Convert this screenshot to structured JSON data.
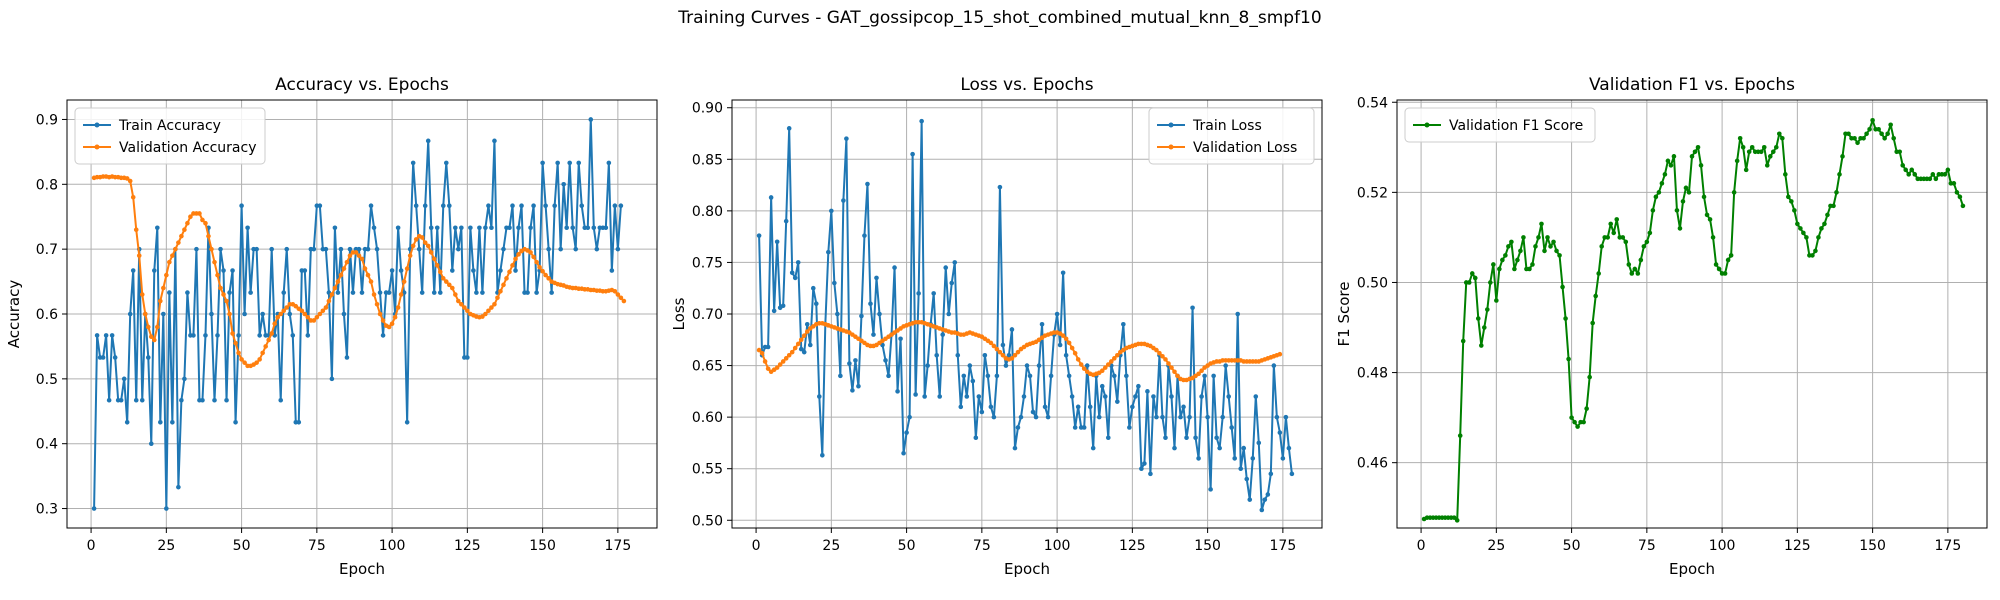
{
  "figure": {
    "suptitle": "Training Curves - GAT_gossipcop_15_shot_combined_mutual_knn_8_smpf10"
  },
  "chart_data": [
    {
      "type": "line",
      "title": "Accuracy vs. Epochs",
      "xlabel": "Epoch",
      "ylabel": "Accuracy",
      "xlim": [
        -8,
        188
      ],
      "ylim": [
        0.27,
        0.93
      ],
      "xticks": [
        0,
        25,
        50,
        75,
        100,
        125,
        150,
        175
      ],
      "yticks": [
        0.3,
        0.4,
        0.5,
        0.6,
        0.7,
        0.8,
        0.9
      ],
      "ytick_labels": [
        "0.3",
        "0.4",
        "0.5",
        "0.6",
        "0.7",
        "0.8",
        "0.9"
      ],
      "grid": true,
      "legend": "top-left",
      "series": [
        {
          "name": "Train Accuracy",
          "color": "#1f77b4",
          "x_start": 1,
          "values": [
            0.3,
            0.567,
            0.533,
            0.533,
            0.567,
            0.467,
            0.567,
            0.533,
            0.467,
            0.467,
            0.5,
            0.433,
            0.6,
            0.667,
            0.467,
            0.7,
            0.467,
            0.6,
            0.533,
            0.4,
            0.667,
            0.733,
            0.433,
            0.6,
            0.3,
            0.633,
            0.433,
            0.7,
            0.333,
            0.467,
            0.5,
            0.633,
            0.567,
            0.567,
            0.7,
            0.467,
            0.467,
            0.567,
            0.733,
            0.6,
            0.467,
            0.567,
            0.7,
            0.667,
            0.467,
            0.633,
            0.667,
            0.433,
            0.567,
            0.767,
            0.6,
            0.733,
            0.633,
            0.7,
            0.7,
            0.567,
            0.6,
            0.567,
            0.567,
            0.7,
            0.567,
            0.6,
            0.467,
            0.633,
            0.7,
            0.6,
            0.567,
            0.433,
            0.433,
            0.667,
            0.667,
            0.567,
            0.7,
            0.7,
            0.767,
            0.767,
            0.7,
            0.7,
            0.633,
            0.5,
            0.733,
            0.633,
            0.7,
            0.6,
            0.533,
            0.7,
            0.633,
            0.7,
            0.7,
            0.633,
            0.7,
            0.7,
            0.767,
            0.733,
            0.7,
            0.633,
            0.567,
            0.633,
            0.633,
            0.667,
            0.6,
            0.733,
            0.667,
            0.633,
            0.433,
            0.7,
            0.833,
            0.767,
            0.7,
            0.633,
            0.767,
            0.867,
            0.733,
            0.633,
            0.733,
            0.633,
            0.767,
            0.833,
            0.767,
            0.667,
            0.733,
            0.7,
            0.733,
            0.533,
            0.533,
            0.733,
            0.667,
            0.633,
            0.733,
            0.633,
            0.733,
            0.767,
            0.733,
            0.867,
            0.633,
            0.667,
            0.7,
            0.733,
            0.733,
            0.767,
            0.667,
            0.733,
            0.767,
            0.633,
            0.633,
            0.733,
            0.767,
            0.633,
            0.667,
            0.833,
            0.767,
            0.7,
            0.633,
            0.767,
            0.833,
            0.7,
            0.8,
            0.733,
            0.833,
            0.733,
            0.7,
            0.833,
            0.767,
            0.733,
            0.733,
            0.9,
            0.733,
            0.7,
            0.733,
            0.733,
            0.733,
            0.833,
            0.667,
            0.767,
            0.7,
            0.767
          ]
        },
        {
          "name": "Validation Accuracy",
          "color": "#ff7f0e",
          "x_start": 1,
          "values": [
            0.81,
            0.811,
            0.811,
            0.812,
            0.812,
            0.811,
            0.812,
            0.811,
            0.811,
            0.81,
            0.81,
            0.809,
            0.805,
            0.78,
            0.73,
            0.69,
            0.63,
            0.6,
            0.58,
            0.565,
            0.56,
            0.58,
            0.62,
            0.64,
            0.66,
            0.68,
            0.69,
            0.7,
            0.71,
            0.72,
            0.73,
            0.74,
            0.75,
            0.755,
            0.755,
            0.755,
            0.745,
            0.74,
            0.72,
            0.7,
            0.68,
            0.66,
            0.64,
            0.63,
            0.62,
            0.6,
            0.57,
            0.555,
            0.54,
            0.53,
            0.525,
            0.52,
            0.52,
            0.522,
            0.525,
            0.53,
            0.54,
            0.55,
            0.56,
            0.57,
            0.585,
            0.595,
            0.6,
            0.605,
            0.61,
            0.615,
            0.615,
            0.612,
            0.608,
            0.605,
            0.6,
            0.595,
            0.59,
            0.59,
            0.595,
            0.6,
            0.605,
            0.61,
            0.62,
            0.63,
            0.64,
            0.65,
            0.66,
            0.67,
            0.68,
            0.69,
            0.695,
            0.695,
            0.69,
            0.685,
            0.67,
            0.66,
            0.65,
            0.63,
            0.615,
            0.6,
            0.59,
            0.582,
            0.58,
            0.585,
            0.595,
            0.61,
            0.63,
            0.65,
            0.67,
            0.69,
            0.705,
            0.715,
            0.72,
            0.718,
            0.71,
            0.705,
            0.695,
            0.685,
            0.675,
            0.665,
            0.655,
            0.65,
            0.645,
            0.64,
            0.63,
            0.62,
            0.615,
            0.61,
            0.605,
            0.6,
            0.598,
            0.596,
            0.595,
            0.596,
            0.6,
            0.605,
            0.61,
            0.615,
            0.625,
            0.635,
            0.645,
            0.655,
            0.665,
            0.675,
            0.685,
            0.692,
            0.697,
            0.7,
            0.698,
            0.695,
            0.688,
            0.68,
            0.672,
            0.666,
            0.66,
            0.655,
            0.65,
            0.648,
            0.646,
            0.645,
            0.644,
            0.642,
            0.641,
            0.64,
            0.64,
            0.639,
            0.639,
            0.638,
            0.638,
            0.637,
            0.637,
            0.636,
            0.636,
            0.635,
            0.635,
            0.636,
            0.637,
            0.635,
            0.63,
            0.625,
            0.62
          ]
        }
      ]
    },
    {
      "type": "line",
      "title": "Loss vs. Epochs",
      "xlabel": "Epoch",
      "ylabel": "Loss",
      "xlim": [
        -8,
        188
      ],
      "ylim": [
        0.4925,
        0.9075
      ],
      "xticks": [
        0,
        25,
        50,
        75,
        100,
        125,
        150,
        175
      ],
      "yticks": [
        0.5,
        0.55,
        0.6,
        0.65,
        0.7,
        0.75,
        0.8,
        0.85,
        0.9
      ],
      "ytick_labels": [
        "0.50",
        "0.55",
        "0.60",
        "0.65",
        "0.70",
        "0.75",
        "0.80",
        "0.85",
        "0.90"
      ],
      "grid": true,
      "legend": "top-right",
      "series": [
        {
          "name": "Train Loss",
          "color": "#1f77b4",
          "x_start": 1,
          "values": [
            0.776,
            0.66,
            0.668,
            0.668,
            0.813,
            0.703,
            0.77,
            0.706,
            0.708,
            0.79,
            0.88,
            0.74,
            0.735,
            0.75,
            0.666,
            0.663,
            0.69,
            0.67,
            0.725,
            0.71,
            0.62,
            0.563,
            0.69,
            0.76,
            0.8,
            0.73,
            0.7,
            0.64,
            0.81,
            0.87,
            0.652,
            0.626,
            0.655,
            0.63,
            0.698,
            0.776,
            0.826,
            0.71,
            0.68,
            0.735,
            0.7,
            0.67,
            0.655,
            0.64,
            0.68,
            0.745,
            0.625,
            0.676,
            0.565,
            0.585,
            0.6,
            0.855,
            0.622,
            0.72,
            0.887,
            0.62,
            0.65,
            0.69,
            0.72,
            0.66,
            0.62,
            0.68,
            0.745,
            0.7,
            0.73,
            0.75,
            0.66,
            0.61,
            0.64,
            0.62,
            0.65,
            0.635,
            0.58,
            0.62,
            0.605,
            0.66,
            0.64,
            0.61,
            0.6,
            0.64,
            0.823,
            0.67,
            0.65,
            0.66,
            0.685,
            0.57,
            0.59,
            0.6,
            0.62,
            0.65,
            0.64,
            0.605,
            0.6,
            0.65,
            0.69,
            0.61,
            0.6,
            0.64,
            0.68,
            0.7,
            0.67,
            0.74,
            0.66,
            0.64,
            0.62,
            0.59,
            0.61,
            0.59,
            0.59,
            0.65,
            0.61,
            0.57,
            0.64,
            0.6,
            0.63,
            0.62,
            0.58,
            0.65,
            0.64,
            0.615,
            0.66,
            0.69,
            0.64,
            0.59,
            0.61,
            0.62,
            0.63,
            0.55,
            0.555,
            0.625,
            0.545,
            0.62,
            0.6,
            0.66,
            0.6,
            0.58,
            0.65,
            0.62,
            0.57,
            0.64,
            0.6,
            0.61,
            0.58,
            0.6,
            0.706,
            0.58,
            0.56,
            0.62,
            0.64,
            0.6,
            0.53,
            0.64,
            0.58,
            0.57,
            0.6,
            0.65,
            0.62,
            0.59,
            0.56,
            0.7,
            0.55,
            0.57,
            0.54,
            0.52,
            0.56,
            0.62,
            0.575,
            0.51,
            0.52,
            0.525,
            0.545,
            0.65,
            0.6,
            0.585,
            0.56,
            0.6,
            0.57,
            0.545
          ]
        },
        {
          "name": "Validation Loss",
          "color": "#ff7f0e",
          "x_start": 1,
          "values": [
            0.665,
            0.662,
            0.654,
            0.647,
            0.644,
            0.646,
            0.648,
            0.651,
            0.654,
            0.657,
            0.66,
            0.663,
            0.667,
            0.671,
            0.675,
            0.679,
            0.683,
            0.686,
            0.688,
            0.69,
            0.691,
            0.691,
            0.69,
            0.689,
            0.688,
            0.687,
            0.686,
            0.685,
            0.684,
            0.683,
            0.682,
            0.68,
            0.678,
            0.676,
            0.674,
            0.672,
            0.67,
            0.669,
            0.669,
            0.67,
            0.672,
            0.674,
            0.676,
            0.678,
            0.68,
            0.682,
            0.684,
            0.686,
            0.688,
            0.689,
            0.69,
            0.691,
            0.692,
            0.692,
            0.692,
            0.691,
            0.69,
            0.689,
            0.688,
            0.687,
            0.686,
            0.685,
            0.684,
            0.683,
            0.682,
            0.682,
            0.681,
            0.68,
            0.68,
            0.681,
            0.682,
            0.681,
            0.68,
            0.679,
            0.678,
            0.676,
            0.674,
            0.672,
            0.669,
            0.666,
            0.663,
            0.66,
            0.657,
            0.656,
            0.657,
            0.66,
            0.663,
            0.666,
            0.668,
            0.67,
            0.671,
            0.672,
            0.673,
            0.675,
            0.677,
            0.679,
            0.68,
            0.681,
            0.682,
            0.682,
            0.681,
            0.679,
            0.676,
            0.672,
            0.667,
            0.662,
            0.656,
            0.651,
            0.647,
            0.644,
            0.642,
            0.641,
            0.642,
            0.643,
            0.645,
            0.648,
            0.651,
            0.654,
            0.657,
            0.66,
            0.663,
            0.665,
            0.667,
            0.668,
            0.669,
            0.67,
            0.671,
            0.671,
            0.671,
            0.67,
            0.669,
            0.667,
            0.665,
            0.662,
            0.659,
            0.656,
            0.652,
            0.648,
            0.644,
            0.64,
            0.637,
            0.636,
            0.636,
            0.637,
            0.638,
            0.64,
            0.642,
            0.645,
            0.648,
            0.65,
            0.652,
            0.653,
            0.654,
            0.654,
            0.655,
            0.655,
            0.655,
            0.655,
            0.655,
            0.655,
            0.655,
            0.654,
            0.654,
            0.654,
            0.654,
            0.654,
            0.654,
            0.655,
            0.656,
            0.657,
            0.658,
            0.659,
            0.66,
            0.661
          ]
        }
      ]
    },
    {
      "type": "line",
      "title": "Validation F1 vs. Epochs",
      "xlabel": "Epoch",
      "ylabel": "F1 Score",
      "xlim": [
        -8,
        188
      ],
      "ylim": [
        0.4455,
        0.5405
      ],
      "xticks": [
        0,
        25,
        50,
        75,
        100,
        125,
        150,
        175
      ],
      "yticks": [
        0.46,
        0.48,
        0.5,
        0.52,
        0.54
      ],
      "ytick_labels": [
        "0.46",
        "0.48",
        "0.50",
        "0.52",
        "0.54"
      ],
      "grid": true,
      "legend": "top-left",
      "series": [
        {
          "name": "Validation F1 Score",
          "color": "#008000",
          "x_start": 1,
          "values": [
            0.4475,
            0.4478,
            0.4478,
            0.4478,
            0.4478,
            0.4478,
            0.4478,
            0.4478,
            0.4478,
            0.4478,
            0.4478,
            0.4472,
            0.466,
            0.487,
            0.5,
            0.5,
            0.502,
            0.501,
            0.492,
            0.486,
            0.49,
            0.494,
            0.5,
            0.504,
            0.496,
            0.503,
            0.505,
            0.506,
            0.508,
            0.509,
            0.503,
            0.505,
            0.507,
            0.51,
            0.503,
            0.503,
            0.504,
            0.508,
            0.51,
            0.513,
            0.507,
            0.51,
            0.508,
            0.509,
            0.507,
            0.506,
            0.499,
            0.492,
            0.483,
            0.47,
            0.469,
            0.468,
            0.469,
            0.469,
            0.472,
            0.479,
            0.491,
            0.497,
            0.502,
            0.508,
            0.51,
            0.51,
            0.513,
            0.511,
            0.514,
            0.51,
            0.51,
            0.509,
            0.504,
            0.502,
            0.503,
            0.502,
            0.505,
            0.508,
            0.509,
            0.511,
            0.516,
            0.519,
            0.52,
            0.522,
            0.524,
            0.527,
            0.526,
            0.528,
            0.516,
            0.512,
            0.518,
            0.521,
            0.52,
            0.528,
            0.529,
            0.53,
            0.526,
            0.519,
            0.515,
            0.514,
            0.51,
            0.504,
            0.503,
            0.502,
            0.502,
            0.505,
            0.506,
            0.52,
            0.527,
            0.532,
            0.53,
            0.525,
            0.529,
            0.53,
            0.529,
            0.529,
            0.529,
            0.53,
            0.526,
            0.528,
            0.529,
            0.53,
            0.533,
            0.532,
            0.524,
            0.519,
            0.518,
            0.516,
            0.513,
            0.512,
            0.511,
            0.51,
            0.506,
            0.506,
            0.507,
            0.51,
            0.512,
            0.513,
            0.515,
            0.517,
            0.517,
            0.52,
            0.524,
            0.528,
            0.533,
            0.533,
            0.532,
            0.532,
            0.531,
            0.532,
            0.532,
            0.533,
            0.534,
            0.536,
            0.534,
            0.534,
            0.533,
            0.532,
            0.533,
            0.535,
            0.532,
            0.529,
            0.529,
            0.526,
            0.525,
            0.524,
            0.525,
            0.524,
            0.523,
            0.523,
            0.523,
            0.523,
            0.523,
            0.524,
            0.523,
            0.524,
            0.524,
            0.524,
            0.525,
            0.522,
            0.522,
            0.52,
            0.519,
            0.517
          ]
        }
      ]
    }
  ]
}
